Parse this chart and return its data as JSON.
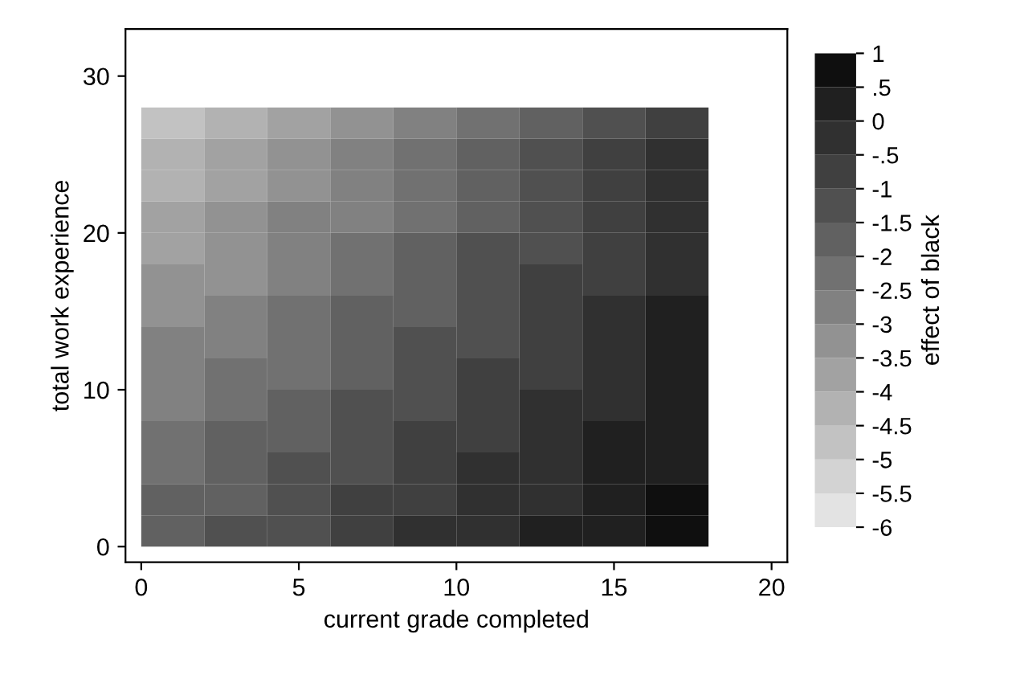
{
  "chart_data": {
    "type": "heatmap",
    "xlabel": "current grade completed",
    "ylabel": "total work experience",
    "clabel": "effect of black",
    "x": [
      1,
      3,
      5,
      7,
      9,
      11,
      13,
      15,
      17
    ],
    "y": [
      27,
      25,
      23,
      21,
      19,
      17,
      15,
      13,
      11,
      9,
      7,
      5,
      3,
      1
    ],
    "cells": [
      [
        -4.75,
        -4.25,
        -3.75,
        -3.25,
        -2.75,
        -2.25,
        -1.75,
        -1.25,
        -0.75
      ],
      [
        -4.25,
        -3.75,
        -3.25,
        -2.75,
        -2.25,
        -1.75,
        -1.25,
        -0.75,
        -0.25
      ],
      [
        -4.25,
        -3.75,
        -3.25,
        -2.75,
        -2.25,
        -1.75,
        -1.25,
        -0.75,
        -0.25
      ],
      [
        -3.75,
        -3.25,
        -2.75,
        -2.75,
        -2.25,
        -1.75,
        -1.25,
        -0.75,
        -0.25
      ],
      [
        -3.75,
        -3.25,
        -2.75,
        -2.25,
        -1.75,
        -1.25,
        -1.25,
        -0.75,
        -0.25
      ],
      [
        -3.25,
        -3.25,
        -2.75,
        -2.25,
        -1.75,
        -1.25,
        -0.75,
        -0.75,
        -0.25
      ],
      [
        -3.25,
        -2.75,
        -2.25,
        -1.75,
        -1.75,
        -1.25,
        -0.75,
        -0.25,
        0.25
      ],
      [
        -2.75,
        -2.75,
        -2.25,
        -1.75,
        -1.25,
        -1.25,
        -0.75,
        -0.25,
        0.25
      ],
      [
        -2.75,
        -2.25,
        -2.25,
        -1.75,
        -1.25,
        -0.75,
        -0.75,
        -0.25,
        0.25
      ],
      [
        -2.75,
        -2.25,
        -1.75,
        -1.25,
        -1.25,
        -0.75,
        -0.25,
        -0.25,
        0.25
      ],
      [
        -2.25,
        -1.75,
        -1.75,
        -1.25,
        -0.75,
        -0.75,
        -0.25,
        0.25,
        0.25
      ],
      [
        -2.25,
        -1.75,
        -1.25,
        -1.25,
        -0.75,
        -0.25,
        -0.25,
        0.25,
        0.25
      ],
      [
        -1.75,
        -1.75,
        -1.25,
        -0.75,
        -0.75,
        -0.25,
        -0.25,
        0.25,
        0.75
      ],
      [
        -1.75,
        -1.25,
        -1.25,
        -0.75,
        -0.25,
        -0.25,
        0.25,
        0.25,
        0.75
      ]
    ],
    "clim": [
      -6,
      1
    ],
    "cticks": [
      1,
      {
        "value": 0.5,
        "label": ".5"
      },
      0,
      {
        "value": -0.5,
        "label": "-.5"
      },
      -1,
      -1.5,
      -2,
      -2.5,
      -3,
      -3.5,
      -4,
      -4.5,
      -5,
      -5.5,
      -6
    ],
    "xlim": [
      -0.5,
      20.5
    ],
    "xticks": [
      0,
      5,
      10,
      15,
      20
    ],
    "ylim": [
      -1,
      33
    ],
    "yticks": [
      0,
      10,
      20,
      30
    ],
    "grid": false
  }
}
